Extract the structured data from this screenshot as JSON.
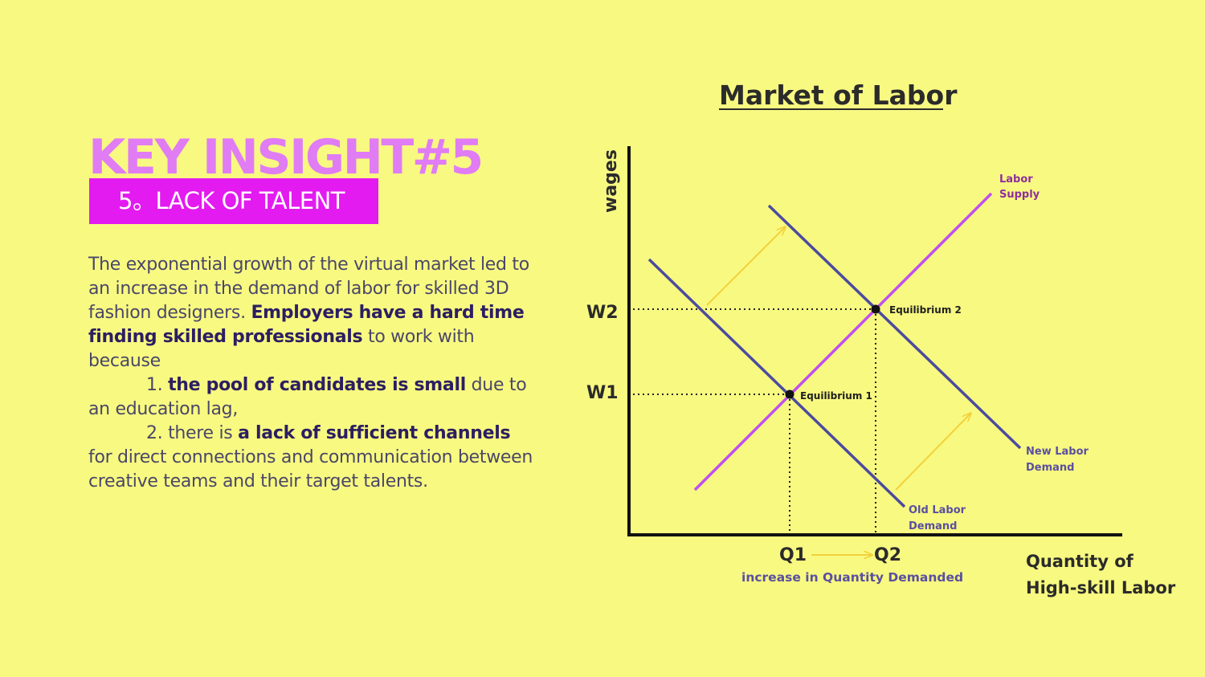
{
  "slide": {
    "title": "KEY INSIGHT#5",
    "subtitle": "5。LACK OF TALENT",
    "body": {
      "p1": "The exponential growth of the virtual market led to an increase in the demand of labor for skilled 3D fashion designers. ",
      "p1_bold": "Employers have a hard time finding skilled professionals",
      "p1_end": " to work with because",
      "item1_num": "1. ",
      "item1_bold": "the pool of candidates is small",
      "item1_end": " due to an education lag,",
      "item2_num": "2. there is ",
      "item2_bold": "a lack of sufficient channels",
      "item2_end": " for direct connections and communication between creative teams and their target talents."
    }
  },
  "diagram": {
    "title": "Market of Labor",
    "y_axis_label": "wages",
    "x_axis_label_line1": "Quantity of",
    "x_axis_label_line2": "High-skill Labor",
    "w2": "W2",
    "w1": "W1",
    "q1": "Q1",
    "q2": "Q2",
    "x_note": "increase in Quantity Demanded",
    "supply_label_line1": "Labor",
    "supply_label_line2": "Supply",
    "new_demand_line1": "New Labor",
    "new_demand_line2": "Demand",
    "old_demand_line1": "Old Labor",
    "old_demand_line2": "Demand",
    "eq1": "Equilibrium 1",
    "eq2": "Equilibrium 2",
    "colors": {
      "supply": "#c04ff0",
      "demand": "#4b4b9e",
      "arrow": "#f3d13a",
      "label": "#5a4fa0",
      "axis": "#111111"
    }
  }
}
